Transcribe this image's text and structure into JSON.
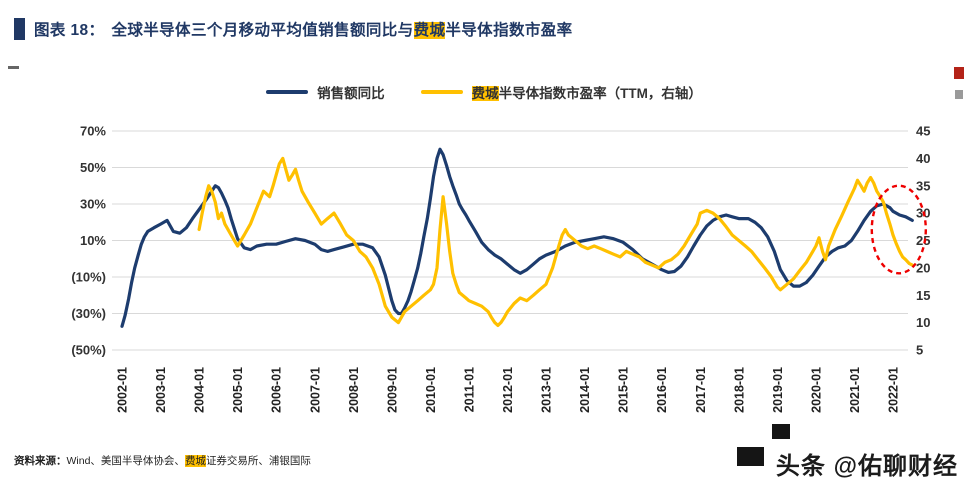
{
  "title": {
    "prefix": "图表 18：",
    "part1": "全球半导体三个月移动平均值销售额同比与",
    "highlight": "费城",
    "part2": "半导体指数市盈率"
  },
  "legend": [
    {
      "label": "销售额同比"
    },
    {
      "label_highlight": "费城",
      "label_rest": "半导体指数市盈率（TTM，右轴）"
    }
  ],
  "source": {
    "prefix": "资料来源：",
    "part1": "Wind、美国半导体协会、",
    "highlight": "费城",
    "part2": "证券交易所、浦银国际"
  },
  "watermark": "头条 @佑聊财经",
  "colors": {
    "title_navy": "#203864",
    "highlight": "#ffc000",
    "line_blue": "#1d3c6e",
    "line_gold": "#ffc000",
    "annotation_red": "#ee0000"
  },
  "chart_data": {
    "type": "line",
    "title": "全球半导体三个月移动平均值销售额同比与费城半导体指数市盈率",
    "legend_position": "top",
    "grid": "horizontal",
    "left_axis": {
      "labels": [
        "70%",
        "50%",
        "30%",
        "10%",
        "(10%)",
        "(30%)",
        "(50%)"
      ],
      "values": [
        70,
        50,
        30,
        10,
        -10,
        -30,
        -50
      ],
      "min": -50,
      "max": 70
    },
    "right_axis": {
      "labels": [
        "45",
        "40",
        "35",
        "30",
        "25",
        "20",
        "15",
        "10",
        "5"
      ],
      "values": [
        45,
        40,
        35,
        30,
        25,
        20,
        15,
        10,
        5
      ],
      "min": 5,
      "max": 45
    },
    "x_axis": {
      "labels": [
        "2002-01",
        "2003-01",
        "2004-01",
        "2005-01",
        "2006-01",
        "2007-01",
        "2008-01",
        "2009-01",
        "2010-01",
        "2011-01",
        "2012-01",
        "2013-01",
        "2014-01",
        "2015-01",
        "2016-01",
        "2017-01",
        "2018-01",
        "2019-01",
        "2020-01",
        "2021-01",
        "2022-01"
      ],
      "values": [
        2002,
        2003,
        2004,
        2005,
        2006,
        2007,
        2008,
        2009,
        2010,
        2011,
        2012,
        2013,
        2014,
        2015,
        2016,
        2017,
        2018,
        2019,
        2020,
        2021,
        2022
      ]
    },
    "series": [
      {
        "name": "销售额同比",
        "axis": "left",
        "unit": "%",
        "color": "#1d3c6e",
        "points": [
          [
            2002.0,
            -37
          ],
          [
            2002.08,
            -31
          ],
          [
            2002.17,
            -22
          ],
          [
            2002.25,
            -13
          ],
          [
            2002.33,
            -5
          ],
          [
            2002.42,
            2
          ],
          [
            2002.5,
            8
          ],
          [
            2002.58,
            12
          ],
          [
            2002.67,
            15
          ],
          [
            2002.83,
            17
          ],
          [
            2003.0,
            19
          ],
          [
            2003.17,
            21
          ],
          [
            2003.33,
            15
          ],
          [
            2003.5,
            14
          ],
          [
            2003.67,
            17
          ],
          [
            2003.83,
            22
          ],
          [
            2004.0,
            27
          ],
          [
            2004.17,
            32
          ],
          [
            2004.33,
            37
          ],
          [
            2004.42,
            40
          ],
          [
            2004.5,
            39
          ],
          [
            2004.58,
            36
          ],
          [
            2004.67,
            32
          ],
          [
            2004.75,
            28
          ],
          [
            2004.83,
            22
          ],
          [
            2004.92,
            16
          ],
          [
            2005.0,
            11
          ],
          [
            2005.17,
            6
          ],
          [
            2005.33,
            5
          ],
          [
            2005.5,
            7
          ],
          [
            2005.75,
            8
          ],
          [
            2006.0,
            8
          ],
          [
            2006.25,
            9.5
          ],
          [
            2006.5,
            11
          ],
          [
            2006.75,
            10
          ],
          [
            2007.0,
            8
          ],
          [
            2007.17,
            5
          ],
          [
            2007.33,
            4
          ],
          [
            2007.5,
            5
          ],
          [
            2007.75,
            6.5
          ],
          [
            2008.0,
            8
          ],
          [
            2008.25,
            8
          ],
          [
            2008.5,
            6
          ],
          [
            2008.67,
            1
          ],
          [
            2008.83,
            -9
          ],
          [
            2009.0,
            -23
          ],
          [
            2009.08,
            -28
          ],
          [
            2009.17,
            -30
          ],
          [
            2009.25,
            -30
          ],
          [
            2009.33,
            -27
          ],
          [
            2009.42,
            -23
          ],
          [
            2009.5,
            -18
          ],
          [
            2009.58,
            -12
          ],
          [
            2009.67,
            -5
          ],
          [
            2009.75,
            3
          ],
          [
            2009.83,
            12
          ],
          [
            2009.92,
            22
          ],
          [
            2010.0,
            33
          ],
          [
            2010.08,
            45
          ],
          [
            2010.17,
            55
          ],
          [
            2010.25,
            60
          ],
          [
            2010.33,
            57
          ],
          [
            2010.42,
            51
          ],
          [
            2010.5,
            45
          ],
          [
            2010.58,
            40
          ],
          [
            2010.67,
            35
          ],
          [
            2010.75,
            30
          ],
          [
            2010.83,
            27
          ],
          [
            2010.92,
            24
          ],
          [
            2011.0,
            21
          ],
          [
            2011.17,
            15
          ],
          [
            2011.33,
            9
          ],
          [
            2011.5,
            5
          ],
          [
            2011.67,
            2
          ],
          [
            2011.83,
            0
          ],
          [
            2012.0,
            -3
          ],
          [
            2012.17,
            -6
          ],
          [
            2012.33,
            -8
          ],
          [
            2012.5,
            -6
          ],
          [
            2012.67,
            -3
          ],
          [
            2012.83,
            0
          ],
          [
            2013.0,
            2
          ],
          [
            2013.25,
            4
          ],
          [
            2013.5,
            7
          ],
          [
            2013.75,
            9
          ],
          [
            2014.0,
            10
          ],
          [
            2014.25,
            11
          ],
          [
            2014.5,
            12
          ],
          [
            2014.75,
            11
          ],
          [
            2015.0,
            9
          ],
          [
            2015.25,
            5
          ],
          [
            2015.5,
            0
          ],
          [
            2015.75,
            -3
          ],
          [
            2016.0,
            -6
          ],
          [
            2016.17,
            -7.5
          ],
          [
            2016.33,
            -7
          ],
          [
            2016.5,
            -4
          ],
          [
            2016.67,
            1
          ],
          [
            2016.83,
            7
          ],
          [
            2017.0,
            13
          ],
          [
            2017.17,
            18
          ],
          [
            2017.33,
            21
          ],
          [
            2017.5,
            23
          ],
          [
            2017.67,
            24
          ],
          [
            2017.83,
            23
          ],
          [
            2018.0,
            22
          ],
          [
            2018.25,
            22
          ],
          [
            2018.42,
            20
          ],
          [
            2018.58,
            17
          ],
          [
            2018.75,
            12
          ],
          [
            2018.92,
            4
          ],
          [
            2019.08,
            -6
          ],
          [
            2019.25,
            -12
          ],
          [
            2019.42,
            -15
          ],
          [
            2019.58,
            -15
          ],
          [
            2019.75,
            -13
          ],
          [
            2019.92,
            -9
          ],
          [
            2020.08,
            -4
          ],
          [
            2020.25,
            1
          ],
          [
            2020.42,
            4
          ],
          [
            2020.58,
            6
          ],
          [
            2020.75,
            7
          ],
          [
            2020.92,
            10
          ],
          [
            2021.08,
            15
          ],
          [
            2021.25,
            21
          ],
          [
            2021.42,
            26
          ],
          [
            2021.58,
            29
          ],
          [
            2021.75,
            30
          ],
          [
            2021.92,
            28
          ],
          [
            2022.0,
            26
          ],
          [
            2022.17,
            24
          ],
          [
            2022.33,
            23
          ],
          [
            2022.5,
            21
          ]
        ]
      },
      {
        "name": "费城半导体指数市盈率（TTM，右轴）",
        "axis": "right",
        "unit": "x",
        "color": "#ffc000",
        "points": [
          [
            2004.0,
            27
          ],
          [
            2004.08,
            30
          ],
          [
            2004.17,
            33
          ],
          [
            2004.25,
            35
          ],
          [
            2004.33,
            34
          ],
          [
            2004.42,
            32
          ],
          [
            2004.5,
            29
          ],
          [
            2004.58,
            30
          ],
          [
            2004.67,
            28
          ],
          [
            2004.83,
            26
          ],
          [
            2005.0,
            24
          ],
          [
            2005.17,
            26
          ],
          [
            2005.33,
            28
          ],
          [
            2005.5,
            31
          ],
          [
            2005.67,
            34
          ],
          [
            2005.83,
            33
          ],
          [
            2005.92,
            35
          ],
          [
            2006.0,
            37
          ],
          [
            2006.08,
            39
          ],
          [
            2006.17,
            40
          ],
          [
            2006.25,
            38
          ],
          [
            2006.33,
            36
          ],
          [
            2006.42,
            37
          ],
          [
            2006.5,
            38
          ],
          [
            2006.58,
            36
          ],
          [
            2006.67,
            34
          ],
          [
            2006.83,
            32
          ],
          [
            2007.0,
            30
          ],
          [
            2007.17,
            28
          ],
          [
            2007.33,
            29
          ],
          [
            2007.5,
            30
          ],
          [
            2007.67,
            28
          ],
          [
            2007.83,
            26
          ],
          [
            2008.0,
            25
          ],
          [
            2008.17,
            23
          ],
          [
            2008.33,
            22
          ],
          [
            2008.5,
            20
          ],
          [
            2008.67,
            17
          ],
          [
            2008.83,
            13
          ],
          [
            2009.0,
            11
          ],
          [
            2009.17,
            10
          ],
          [
            2009.33,
            12
          ],
          [
            2009.5,
            13
          ],
          [
            2009.67,
            14
          ],
          [
            2009.83,
            15
          ],
          [
            2010.0,
            16
          ],
          [
            2010.08,
            17
          ],
          [
            2010.17,
            20
          ],
          [
            2010.25,
            27
          ],
          [
            2010.33,
            33
          ],
          [
            2010.42,
            28
          ],
          [
            2010.5,
            23
          ],
          [
            2010.58,
            19
          ],
          [
            2010.67,
            17
          ],
          [
            2010.75,
            15.5
          ],
          [
            2010.92,
            14.5
          ],
          [
            2011.0,
            14
          ],
          [
            2011.17,
            13.5
          ],
          [
            2011.33,
            13
          ],
          [
            2011.5,
            12
          ],
          [
            2011.58,
            11
          ],
          [
            2011.67,
            10
          ],
          [
            2011.75,
            9.5
          ],
          [
            2011.83,
            10
          ],
          [
            2011.92,
            11
          ],
          [
            2012.0,
            12
          ],
          [
            2012.17,
            13.5
          ],
          [
            2012.33,
            14.5
          ],
          [
            2012.5,
            14
          ],
          [
            2012.67,
            15
          ],
          [
            2012.83,
            16
          ],
          [
            2013.0,
            17
          ],
          [
            2013.17,
            20
          ],
          [
            2013.33,
            24
          ],
          [
            2013.42,
            26
          ],
          [
            2013.5,
            27
          ],
          [
            2013.58,
            26
          ],
          [
            2013.75,
            25
          ],
          [
            2013.92,
            24
          ],
          [
            2014.08,
            23.5
          ],
          [
            2014.25,
            24
          ],
          [
            2014.42,
            23.5
          ],
          [
            2014.58,
            23
          ],
          [
            2014.75,
            22.5
          ],
          [
            2014.92,
            22
          ],
          [
            2015.08,
            23
          ],
          [
            2015.25,
            22.5
          ],
          [
            2015.42,
            22
          ],
          [
            2015.58,
            21
          ],
          [
            2015.75,
            20.5
          ],
          [
            2015.92,
            20
          ],
          [
            2016.08,
            21
          ],
          [
            2016.25,
            21.5
          ],
          [
            2016.42,
            22.5
          ],
          [
            2016.58,
            24
          ],
          [
            2016.75,
            26
          ],
          [
            2016.92,
            28
          ],
          [
            2017.0,
            30
          ],
          [
            2017.17,
            30.5
          ],
          [
            2017.33,
            30
          ],
          [
            2017.5,
            29
          ],
          [
            2017.67,
            27.5
          ],
          [
            2017.83,
            26
          ],
          [
            2018.0,
            25
          ],
          [
            2018.17,
            24
          ],
          [
            2018.33,
            23
          ],
          [
            2018.5,
            21.5
          ],
          [
            2018.67,
            20
          ],
          [
            2018.83,
            18.5
          ],
          [
            2019.0,
            16.5
          ],
          [
            2019.08,
            16
          ],
          [
            2019.25,
            17
          ],
          [
            2019.42,
            18
          ],
          [
            2019.58,
            19.5
          ],
          [
            2019.75,
            21
          ],
          [
            2019.92,
            23
          ],
          [
            2020.0,
            24
          ],
          [
            2020.08,
            25.5
          ],
          [
            2020.17,
            23
          ],
          [
            2020.25,
            21.5
          ],
          [
            2020.33,
            24
          ],
          [
            2020.5,
            27
          ],
          [
            2020.67,
            29.5
          ],
          [
            2020.83,
            32
          ],
          [
            2021.0,
            34.5
          ],
          [
            2021.08,
            36
          ],
          [
            2021.17,
            35
          ],
          [
            2021.25,
            34
          ],
          [
            2021.33,
            35.5
          ],
          [
            2021.42,
            36.5
          ],
          [
            2021.5,
            35.5
          ],
          [
            2021.58,
            34
          ],
          [
            2021.67,
            33
          ],
          [
            2021.75,
            32
          ],
          [
            2021.83,
            30
          ],
          [
            2021.92,
            28
          ],
          [
            2022.0,
            26
          ],
          [
            2022.08,
            24.5
          ],
          [
            2022.17,
            23
          ],
          [
            2022.25,
            22
          ],
          [
            2022.33,
            21.5
          ],
          [
            2022.42,
            20.8
          ],
          [
            2022.5,
            20.5
          ]
        ]
      }
    ],
    "annotation": {
      "shape": "dashed-ellipse",
      "color": "#ee0000",
      "x_center": 2022.15,
      "x_radius_years": 0.7,
      "y_axis": "right",
      "y_center": 27,
      "y_radius": 8
    }
  }
}
